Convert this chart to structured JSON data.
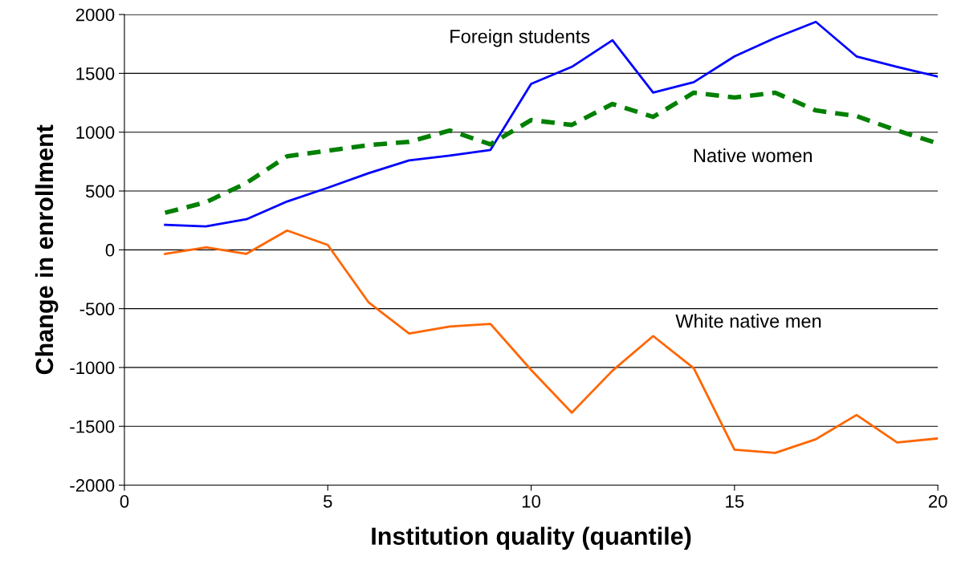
{
  "chart_data": {
    "type": "line",
    "xlabel": "Institution quality (quantile)",
    "ylabel": "Change in enrollment",
    "x": [
      1,
      2,
      3,
      4,
      5,
      6,
      7,
      8,
      9,
      10,
      11,
      12,
      13,
      14,
      15,
      16,
      17,
      18,
      19,
      20
    ],
    "series": [
      {
        "name": "Foreign students",
        "color": "#0000ff",
        "line_style": "solid",
        "values": [
          212,
          199,
          260,
          411,
          527,
          651,
          760,
          801,
          849,
          1411,
          1555,
          1781,
          1336,
          1425,
          1644,
          1801,
          1938,
          1644,
          1555,
          1473
        ]
      },
      {
        "name": "Native women",
        "color": "#008000",
        "line_style": "dashed",
        "values": [
          315,
          404,
          568,
          795,
          842,
          890,
          918,
          1014,
          897,
          1103,
          1062,
          1240,
          1130,
          1336,
          1295,
          1336,
          1185,
          1137,
          1014,
          904
        ]
      },
      {
        "name": "White native men",
        "color": "#ff6600",
        "line_style": "solid",
        "values": [
          -34,
          21,
          -34,
          164,
          41,
          -445,
          -712,
          -651,
          -630,
          -1021,
          -1384,
          -1027,
          -733,
          -1007,
          -1699,
          -1726,
          -1610,
          -1404,
          -1637,
          -1603
        ]
      }
    ],
    "xlim": [
      0,
      20
    ],
    "xticks": [
      0,
      5,
      10,
      15,
      20
    ],
    "ylim": [
      -2000,
      2000
    ],
    "yticks": [
      -2000,
      -1500,
      -1000,
      -500,
      0,
      500,
      1000,
      1500,
      2000
    ],
    "grid": "y",
    "marker": "none",
    "legend": false
  }
}
